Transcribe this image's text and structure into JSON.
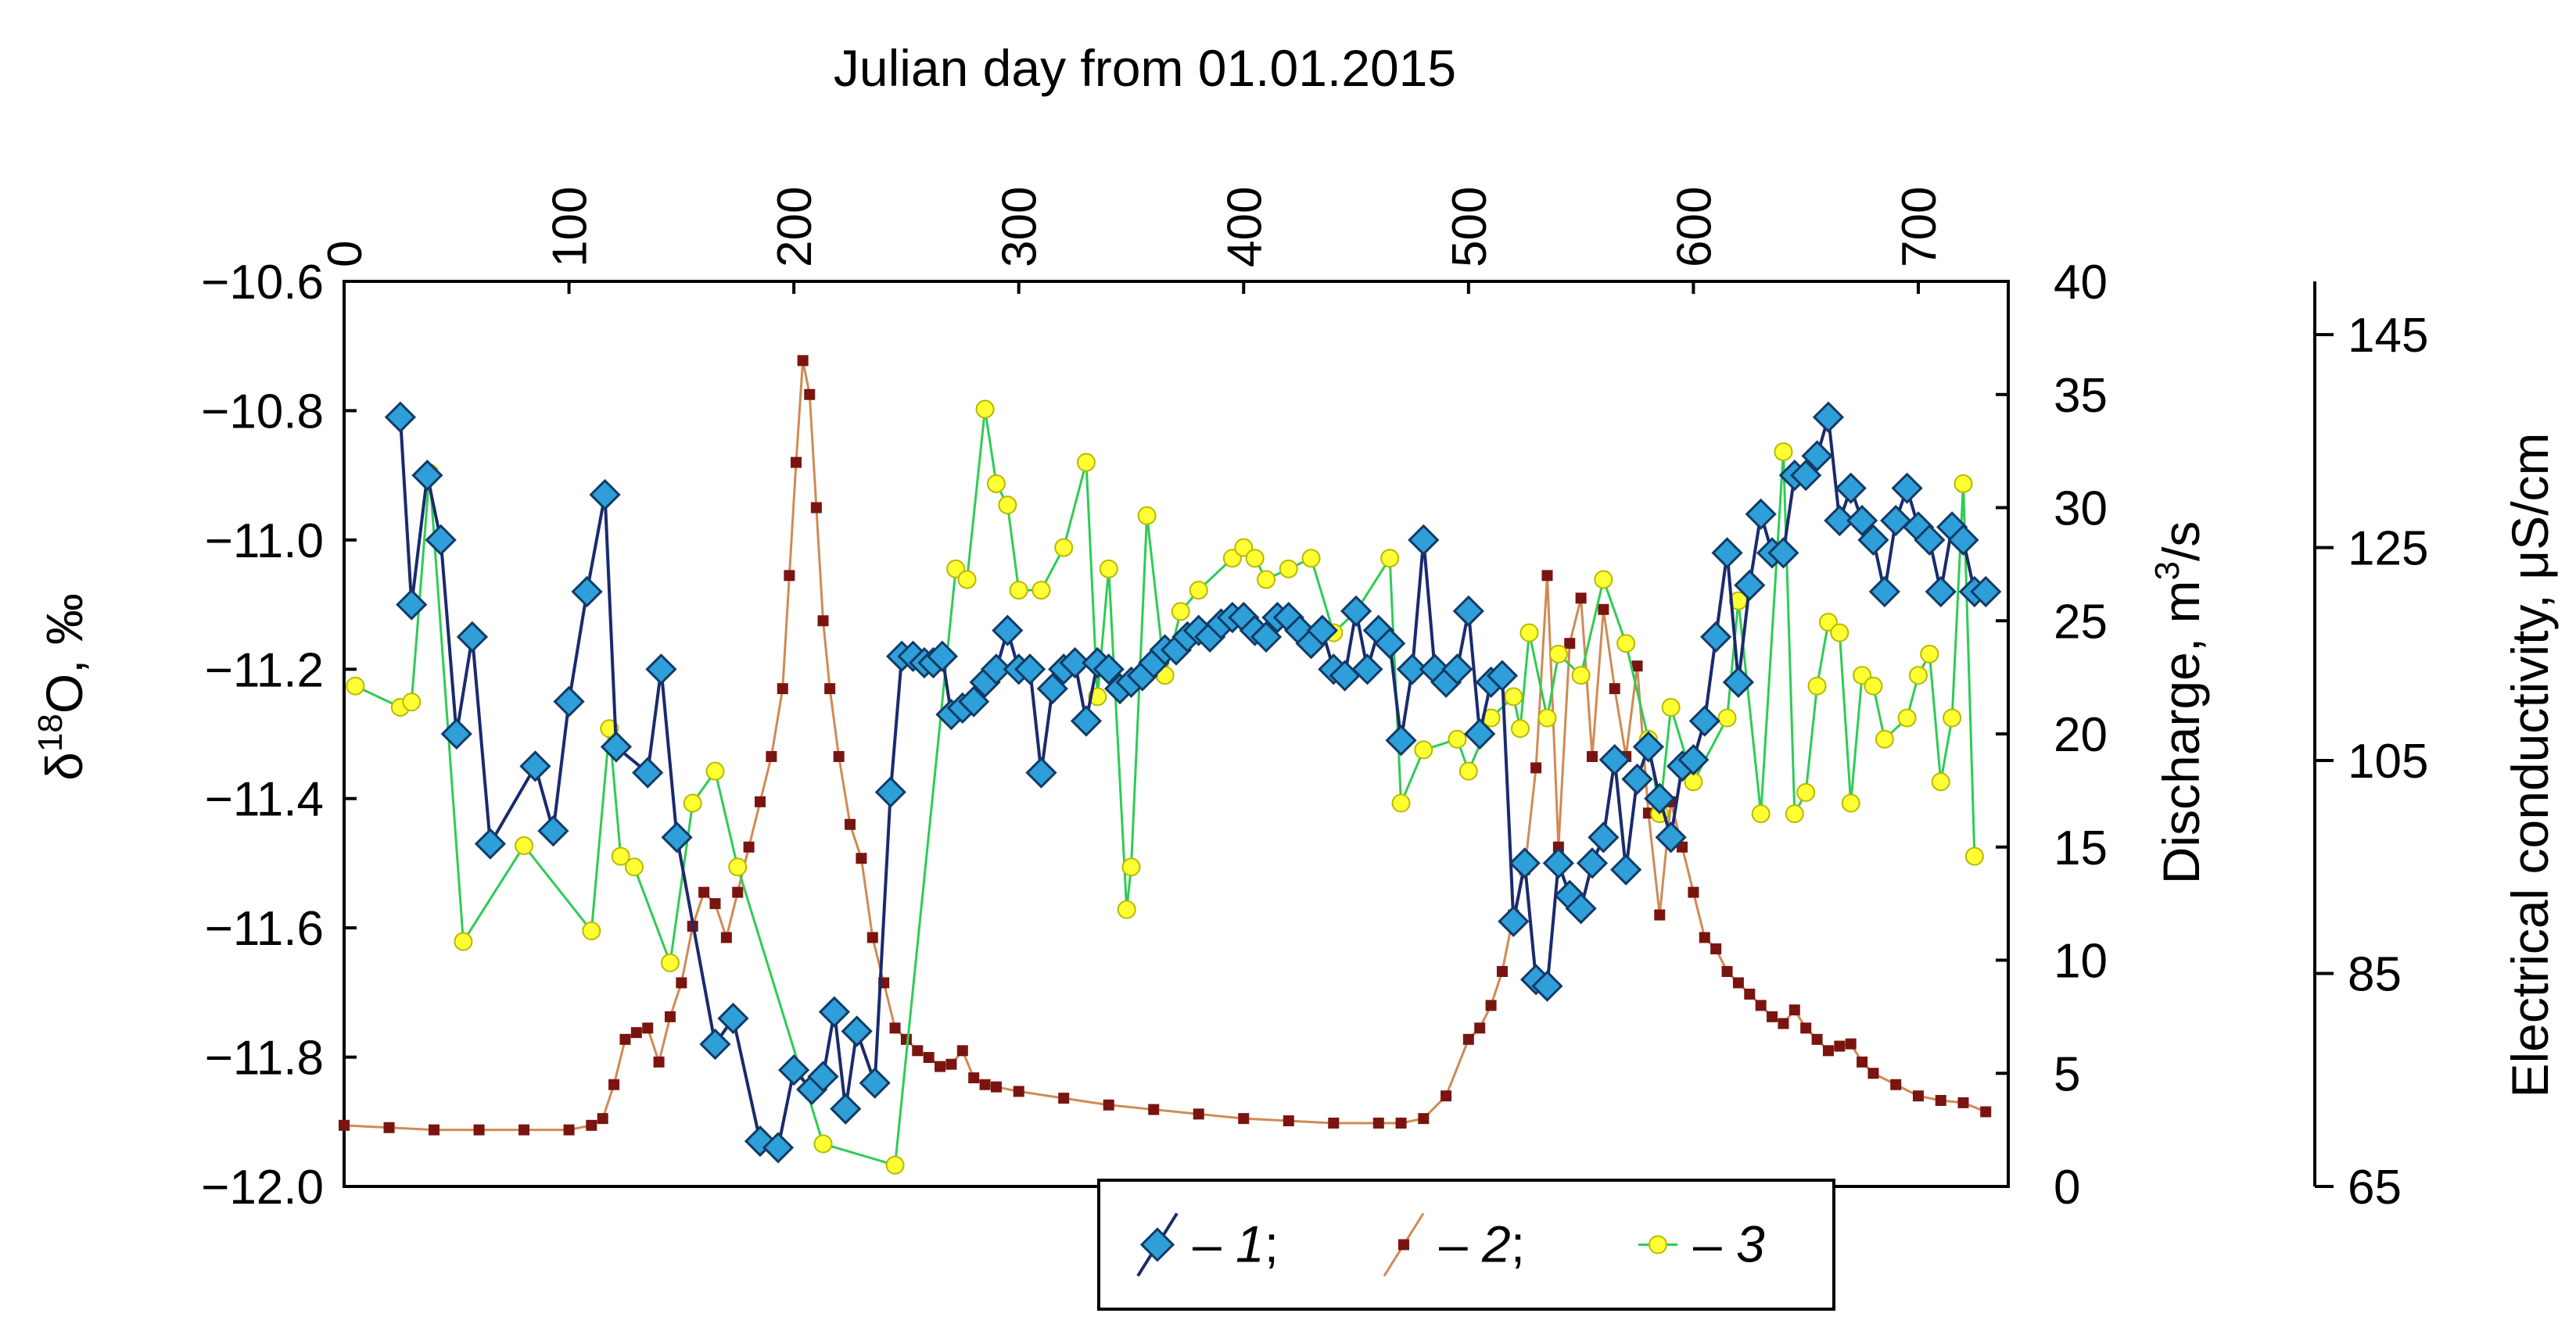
{
  "chart_data": {
    "type": "line",
    "title": "",
    "xlabel": "Julian day from 01.01.2015",
    "xlim": [
      0,
      740
    ],
    "xticks": [
      "0",
      "100",
      "200",
      "300",
      "400",
      "500",
      "600",
      "700"
    ],
    "axes": {
      "left": {
        "label": "δ¹⁸O, ‰",
        "label_base": "δ",
        "label_sup": "18",
        "label_rest": "O, ‰",
        "ylim": [
          -12.0,
          -10.6
        ],
        "ticks": [
          "−12.0",
          "−11.8",
          "−11.6",
          "−11.4",
          "−11.2",
          "−11.0",
          "−10.8",
          "−10.6"
        ]
      },
      "right1": {
        "label": "Discharge, m³/s",
        "label_base": "Discharge, m",
        "label_sup": "3",
        "label_rest": "/s",
        "ylim": [
          0,
          40
        ],
        "ticks": [
          "0",
          "5",
          "10",
          "15",
          "20",
          "25",
          "30",
          "35",
          "40"
        ]
      },
      "right2": {
        "label": "Electrical conductivity, μS/cm",
        "ylim": [
          65,
          150
        ],
        "ticks": [
          "65",
          "85",
          "105",
          "125",
          "145"
        ]
      }
    },
    "legend": {
      "placement": "bottom-center",
      "items": [
        {
          "prefix": "– ",
          "num": "1",
          "suffix": ";"
        },
        {
          "prefix": "– ",
          "num": "2",
          "suffix": ";"
        },
        {
          "prefix": "– ",
          "num": "3",
          "suffix": ""
        }
      ]
    },
    "colors": {
      "s1_fill": "#2e9fd8",
      "s1_line": "#1a2a6e",
      "s2_fill": "#7a1410",
      "s2_line": "#d08a55",
      "s3_fill": "#ffff33",
      "s3_line": "#2ecc55"
    },
    "series": [
      {
        "id": "1",
        "axis": "left",
        "x": [
          25,
          30,
          37,
          43,
          50,
          57,
          65,
          85,
          93,
          100,
          108,
          116,
          121,
          135,
          141,
          148,
          165,
          173,
          185,
          193,
          200,
          208,
          213,
          218,
          223,
          228,
          236,
          243,
          248,
          253,
          258,
          262,
          266,
          270,
          275,
          280,
          285,
          290,
          295,
          300,
          305,
          310,
          315,
          320,
          325,
          330,
          335,
          340,
          345,
          350,
          355,
          360,
          365,
          370,
          375,
          380,
          385,
          390,
          395,
          400,
          405,
          410,
          415,
          420,
          425,
          430,
          435,
          440,
          445,
          450,
          455,
          460,
          465,
          470,
          475,
          480,
          485,
          490,
          495,
          500,
          505,
          510,
          515,
          520,
          525,
          530,
          535,
          540,
          545,
          550,
          555,
          560,
          565,
          570,
          575,
          580,
          585,
          590,
          595,
          600,
          605,
          610,
          615,
          620,
          625,
          630,
          635,
          640,
          645,
          650,
          655,
          660,
          665,
          670,
          675,
          680,
          685,
          690,
          695,
          700,
          705,
          710,
          715,
          720,
          725,
          730
        ],
        "values": [
          -10.81,
          -11.1,
          -10.9,
          -11.0,
          -11.3,
          -11.15,
          -11.47,
          -11.35,
          -11.45,
          -11.25,
          -11.08,
          -10.93,
          -11.32,
          -11.36,
          -11.2,
          -11.46,
          -11.78,
          -11.74,
          -11.93,
          -11.94,
          -11.82,
          -11.85,
          -11.83,
          -11.73,
          -11.88,
          -11.76,
          -11.84,
          -11.39,
          -11.18,
          -11.18,
          -11.19,
          -11.19,
          -11.18,
          -11.27,
          -11.26,
          -11.25,
          -11.22,
          -11.2,
          -11.14,
          -11.2,
          -11.2,
          -11.36,
          -11.23,
          -11.2,
          -11.19,
          -11.28,
          -11.19,
          -11.2,
          -11.23,
          -11.22,
          -11.21,
          -11.19,
          -11.17,
          -11.17,
          -11.15,
          -11.14,
          -11.15,
          -11.13,
          -11.12,
          -11.12,
          -11.14,
          -11.15,
          -11.12,
          -11.12,
          -11.14,
          -11.16,
          -11.14,
          -11.2,
          -11.21,
          -11.11,
          -11.2,
          -11.14,
          -11.16,
          -11.31,
          -11.2,
          -11.0,
          -11.2,
          -11.22,
          -11.2,
          -11.11,
          -11.3,
          -11.22,
          -11.21,
          -11.59,
          -11.5,
          -11.68,
          -11.69,
          -11.5,
          -11.55,
          -11.57,
          -11.5,
          -11.46,
          -11.34,
          -11.51,
          -11.37,
          -11.32,
          -11.4,
          -11.46,
          -11.35,
          -11.34,
          -11.28,
          -11.15,
          -11.02,
          -11.22,
          -11.07,
          -10.96,
          -11.02,
          -11.02,
          -10.9,
          -10.9,
          -10.87,
          -10.81,
          -10.97,
          -10.92,
          -10.97,
          -11.0,
          -11.08,
          -10.97,
          -10.92,
          -10.98,
          -11.0,
          -11.08,
          -10.98,
          -11.0,
          -11.08,
          -11.08
        ]
      },
      {
        "id": "2",
        "axis": "right1",
        "x": [
          0,
          20,
          40,
          60,
          80,
          100,
          110,
          115,
          120,
          125,
          130,
          135,
          140,
          145,
          150,
          155,
          160,
          165,
          170,
          175,
          180,
          185,
          190,
          195,
          198,
          201,
          204,
          207,
          210,
          213,
          216,
          220,
          225,
          230,
          235,
          240,
          245,
          250,
          255,
          260,
          265,
          270,
          275,
          280,
          285,
          290,
          300,
          320,
          340,
          360,
          380,
          400,
          420,
          440,
          460,
          470,
          480,
          490,
          500,
          505,
          510,
          515,
          520,
          525,
          530,
          535,
          540,
          545,
          550,
          555,
          560,
          565,
          570,
          575,
          580,
          585,
          590,
          595,
          600,
          605,
          610,
          615,
          620,
          625,
          630,
          635,
          640,
          645,
          650,
          655,
          660,
          665,
          670,
          675,
          680,
          690,
          700,
          710,
          720,
          730
        ],
        "values": [
          2.7,
          2.6,
          2.5,
          2.5,
          2.5,
          2.5,
          2.7,
          3.0,
          4.5,
          6.5,
          6.8,
          7.0,
          5.5,
          7.5,
          9.0,
          11.5,
          13.0,
          12.5,
          11.0,
          13.0,
          15.0,
          17.0,
          19.0,
          22.0,
          27.0,
          32.0,
          36.5,
          35.0,
          30.0,
          25.0,
          22.0,
          19.0,
          16.0,
          14.5,
          11.0,
          9.0,
          7.0,
          6.5,
          6.0,
          5.7,
          5.3,
          5.4,
          6.0,
          4.8,
          4.5,
          4.4,
          4.2,
          3.9,
          3.6,
          3.4,
          3.2,
          3.0,
          2.9,
          2.8,
          2.8,
          2.8,
          3.0,
          4.0,
          6.5,
          7.0,
          8.0,
          9.5,
          12.0,
          14.0,
          18.5,
          27.0,
          15.0,
          24.0,
          26.0,
          19.0,
          25.5,
          22.0,
          19.0,
          23.0,
          16.5,
          12.0,
          17.0,
          15.0,
          13.0,
          11.0,
          10.5,
          9.5,
          9.0,
          8.5,
          8.0,
          7.5,
          7.2,
          7.8,
          7.0,
          6.5,
          6.0,
          6.2,
          6.3,
          5.5,
          5.0,
          4.5,
          4.0,
          3.8,
          3.7,
          3.3
        ]
      },
      {
        "id": "3",
        "axis": "right2",
        "x": [
          5,
          25,
          30,
          38,
          53,
          80,
          110,
          118,
          123,
          129,
          145,
          155,
          165,
          175,
          213,
          245,
          272,
          277,
          285,
          290,
          295,
          300,
          310,
          320,
          330,
          335,
          340,
          348,
          350,
          357,
          365,
          372,
          380,
          395,
          400,
          405,
          410,
          420,
          430,
          440,
          450,
          465,
          470,
          480,
          495,
          500,
          510,
          520,
          523,
          527,
          535,
          540,
          550,
          560,
          570,
          580,
          585,
          590,
          600,
          615,
          620,
          630,
          640,
          645,
          650,
          655,
          660,
          665,
          670,
          675,
          680,
          685,
          695,
          700,
          705,
          710,
          715,
          720,
          725
        ],
        "values": [
          112,
          110,
          110.5,
          132,
          88,
          97,
          89,
          108,
          96,
          95,
          86,
          101,
          104,
          95,
          69,
          67,
          123,
          122,
          138,
          131,
          129,
          121,
          121,
          125,
          133,
          111,
          123,
          91,
          95,
          128,
          113,
          119,
          121,
          124,
          125,
          124,
          122,
          123,
          124,
          117,
          119,
          124,
          101,
          106,
          107,
          104,
          109,
          111,
          108,
          117,
          109,
          115,
          113,
          122,
          116,
          107,
          100,
          110,
          103,
          109,
          120,
          100,
          134,
          100,
          102,
          112,
          118,
          117,
          101,
          113,
          112,
          107,
          109,
          113,
          115,
          103,
          109,
          131,
          96
        ]
      }
    ]
  }
}
